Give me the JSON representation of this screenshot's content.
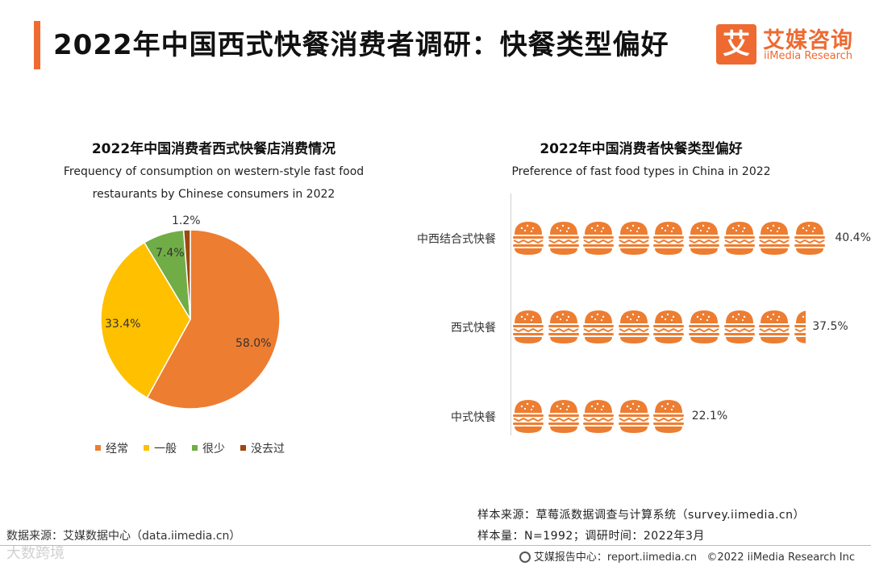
{
  "header": {
    "title": "2022年中国西式快餐消费者调研：快餐类型偏好",
    "logo_mark": "艾",
    "logo_cn": "艾媒咨询",
    "logo_en": "iiMedia Research"
  },
  "colors": {
    "accent": "#ee6a31",
    "pie": [
      "#ed7d31",
      "#ffc000",
      "#70ad47",
      "#9e480e"
    ],
    "burger_bun": "#ed7d31"
  },
  "chart_data": [
    {
      "type": "pie",
      "title": "2022年中国消费者西式快餐店消费情况",
      "subtitle": "Frequency of consumption on western-style fast food restaurants by Chinese consumers in 2022",
      "categories": [
        "经常",
        "一般",
        "很少",
        "没去过"
      ],
      "values": [
        58.0,
        33.4,
        7.4,
        1.2
      ],
      "value_labels": [
        "58.0%",
        "33.4%",
        "7.4%",
        "1.2%"
      ],
      "legend_position": "bottom"
    },
    {
      "type": "bar",
      "style": "pictograph",
      "title": "2022年中国消费者快餐类型偏好",
      "subtitle": "Preference of fast food types in China in 2022",
      "categories": [
        "中西结合式快餐",
        "西式快餐",
        "中式快餐"
      ],
      "values": [
        40.4,
        37.5,
        22.1
      ],
      "value_labels": [
        "40.4%",
        "37.5%",
        "22.1%"
      ],
      "orientation": "horizontal"
    }
  ],
  "notes": {
    "source": "样本来源：草莓派数据调查与计算系统（survey.iimedia.cn）",
    "sample": "样本量：N=1992；调研时间：2022年3月"
  },
  "footer": {
    "data_source": "数据来源：艾媒数据中心（data.iimedia.cn）",
    "report_center": "艾媒报告中心：report.iimedia.cn",
    "copyright": "©2022 iiMedia Research Inc",
    "watermark": "大数跨境"
  }
}
